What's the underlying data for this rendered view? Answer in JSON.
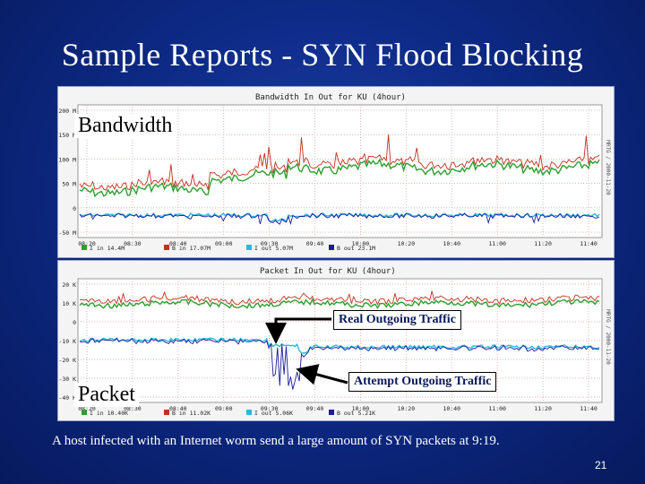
{
  "slide": {
    "title": "Sample Reports - SYN Flood Blocking",
    "caption": "A host infected with an Internet worm send a large amount of SYN packets at 9:19.",
    "page_number": "21"
  },
  "colors": {
    "background": "#0d2a86",
    "series_in": "#2e9e2e",
    "series_in_peak": "#c03020",
    "series_out": "#2ab7e0",
    "series_out_peak": "#1a1aa0",
    "callout_text": "#0a1a5a"
  },
  "bandwidth_panel": {
    "overlay_label": "Bandwidth",
    "chart_title": "Bandwidth In Out for KU (4hour)",
    "y_ticks": [
      "200 M",
      "150 M",
      "100 M",
      "50 M",
      "0",
      "-50 M"
    ],
    "x_ticks": [
      "08:20",
      "08:30",
      "08:40",
      "09:00",
      "09:30",
      "09:40",
      "10:00",
      "10:20",
      "10:40",
      "11:00",
      "11:20",
      "11:40"
    ],
    "legend": [
      "I in  14.4M",
      "B in  17.07M",
      "I out  5.07M",
      "B out  23.1M"
    ],
    "side_label": "MRTG / 2000-11-20"
  },
  "packet_panel": {
    "overlay_label": "Packet",
    "chart_title": "Packet In Out for KU (4hour)",
    "y_ticks": [
      "20 K",
      "10 K",
      "0",
      "-10 K",
      "-20 K",
      "-30 K",
      "-40 K"
    ],
    "x_ticks": [
      "08:20",
      "08:30",
      "08:40",
      "09:00",
      "09:30",
      "09:40",
      "10:00",
      "10:20",
      "10:40",
      "11:00",
      "11:20",
      "11:40"
    ],
    "legend": [
      "I in  10.40K",
      "B in  11.02K",
      "I out  5.06K",
      "B out  5.21K"
    ],
    "side_label": "MRTG / 2000-11-20"
  },
  "callouts": {
    "real": "Real Outgoing Traffic",
    "attempt": "Attempt Outgoing Traffic"
  }
}
